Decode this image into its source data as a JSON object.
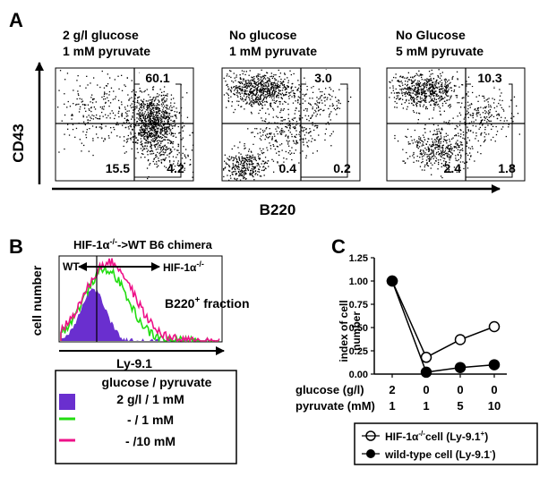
{
  "panel_a": {
    "letter": "A",
    "y_axis_label": "CD43",
    "x_axis_label": "B220",
    "plots": [
      {
        "title_line1": "2 g/l glucose",
        "title_line2": "1 mM pyruvate",
        "q_upper": "60.1",
        "q_lower_left": "15.5",
        "q_lower_right": "4.2"
      },
      {
        "title_line1": "No glucose",
        "title_line2": "1 mM pyruvate",
        "q_upper": "3.0",
        "q_lower_left": "0.4",
        "q_lower_right": "0.2"
      },
      {
        "title_line1": "No Glucose",
        "title_line2": "5 mM pyruvate",
        "q_upper": "10.3",
        "q_lower_left": "2.4",
        "q_lower_right": "1.8"
      }
    ]
  },
  "panel_b": {
    "letter": "B",
    "title_pre": "HIF-1α",
    "title_sup": "-/-",
    "title_post": "->WT B6 chimera",
    "y_axis_label": "cell number",
    "x_axis_label": "Ly-9.1",
    "wt_label": "WT",
    "hif_label": "HIF-1α",
    "hif_sup": "-/-",
    "fraction_pre": "B220",
    "fraction_sup": "+",
    "fraction_post": " fraction",
    "legend_title": "glucose / pyruvate",
    "legend": [
      {
        "label": "2 g/l / 1 mM",
        "color": "#6a2fcf"
      },
      {
        "label": "- / 1 mM",
        "color": "#22dd11"
      },
      {
        "label": "- /10 mM",
        "color": "#ee1188"
      }
    ]
  },
  "panel_c": {
    "letter": "C",
    "y_axis_label_line1": "index of cell",
    "y_axis_label_line2": "number",
    "row_labels": {
      "glucose": "glucose (g/l)",
      "pyruvate": "pyruvate (mM)"
    },
    "legend": {
      "hif_pre": "HIF-1α",
      "hif_sup1": "-/-",
      "hif_mid": "cell  (Ly-9.1",
      "hif_sup2": "+",
      "hif_post": ")",
      "wt_pre": "wild-type cell  (Ly-9.1",
      "wt_sup": "-",
      "wt_post": ")"
    }
  },
  "chart_data": {
    "type": "line",
    "categories": [
      "2/1",
      "0/1",
      "0/5",
      "0/10"
    ],
    "glucose": [
      "2",
      "0",
      "0",
      "0"
    ],
    "pyruvate": [
      "1",
      "1",
      "5",
      "10"
    ],
    "ylim": [
      0,
      1.25
    ],
    "yticks": [
      "0.00",
      "0.25",
      "0.50",
      "0.75",
      "1.00",
      "1.25"
    ],
    "series": [
      {
        "name": "HIF-1α-/- cell (Ly-9.1+)",
        "marker": "open",
        "values": [
          1.0,
          0.18,
          0.37,
          0.51
        ]
      },
      {
        "name": "wild-type cell (Ly-9.1-)",
        "marker": "filled",
        "values": [
          1.0,
          0.02,
          0.07,
          0.1
        ]
      }
    ]
  }
}
